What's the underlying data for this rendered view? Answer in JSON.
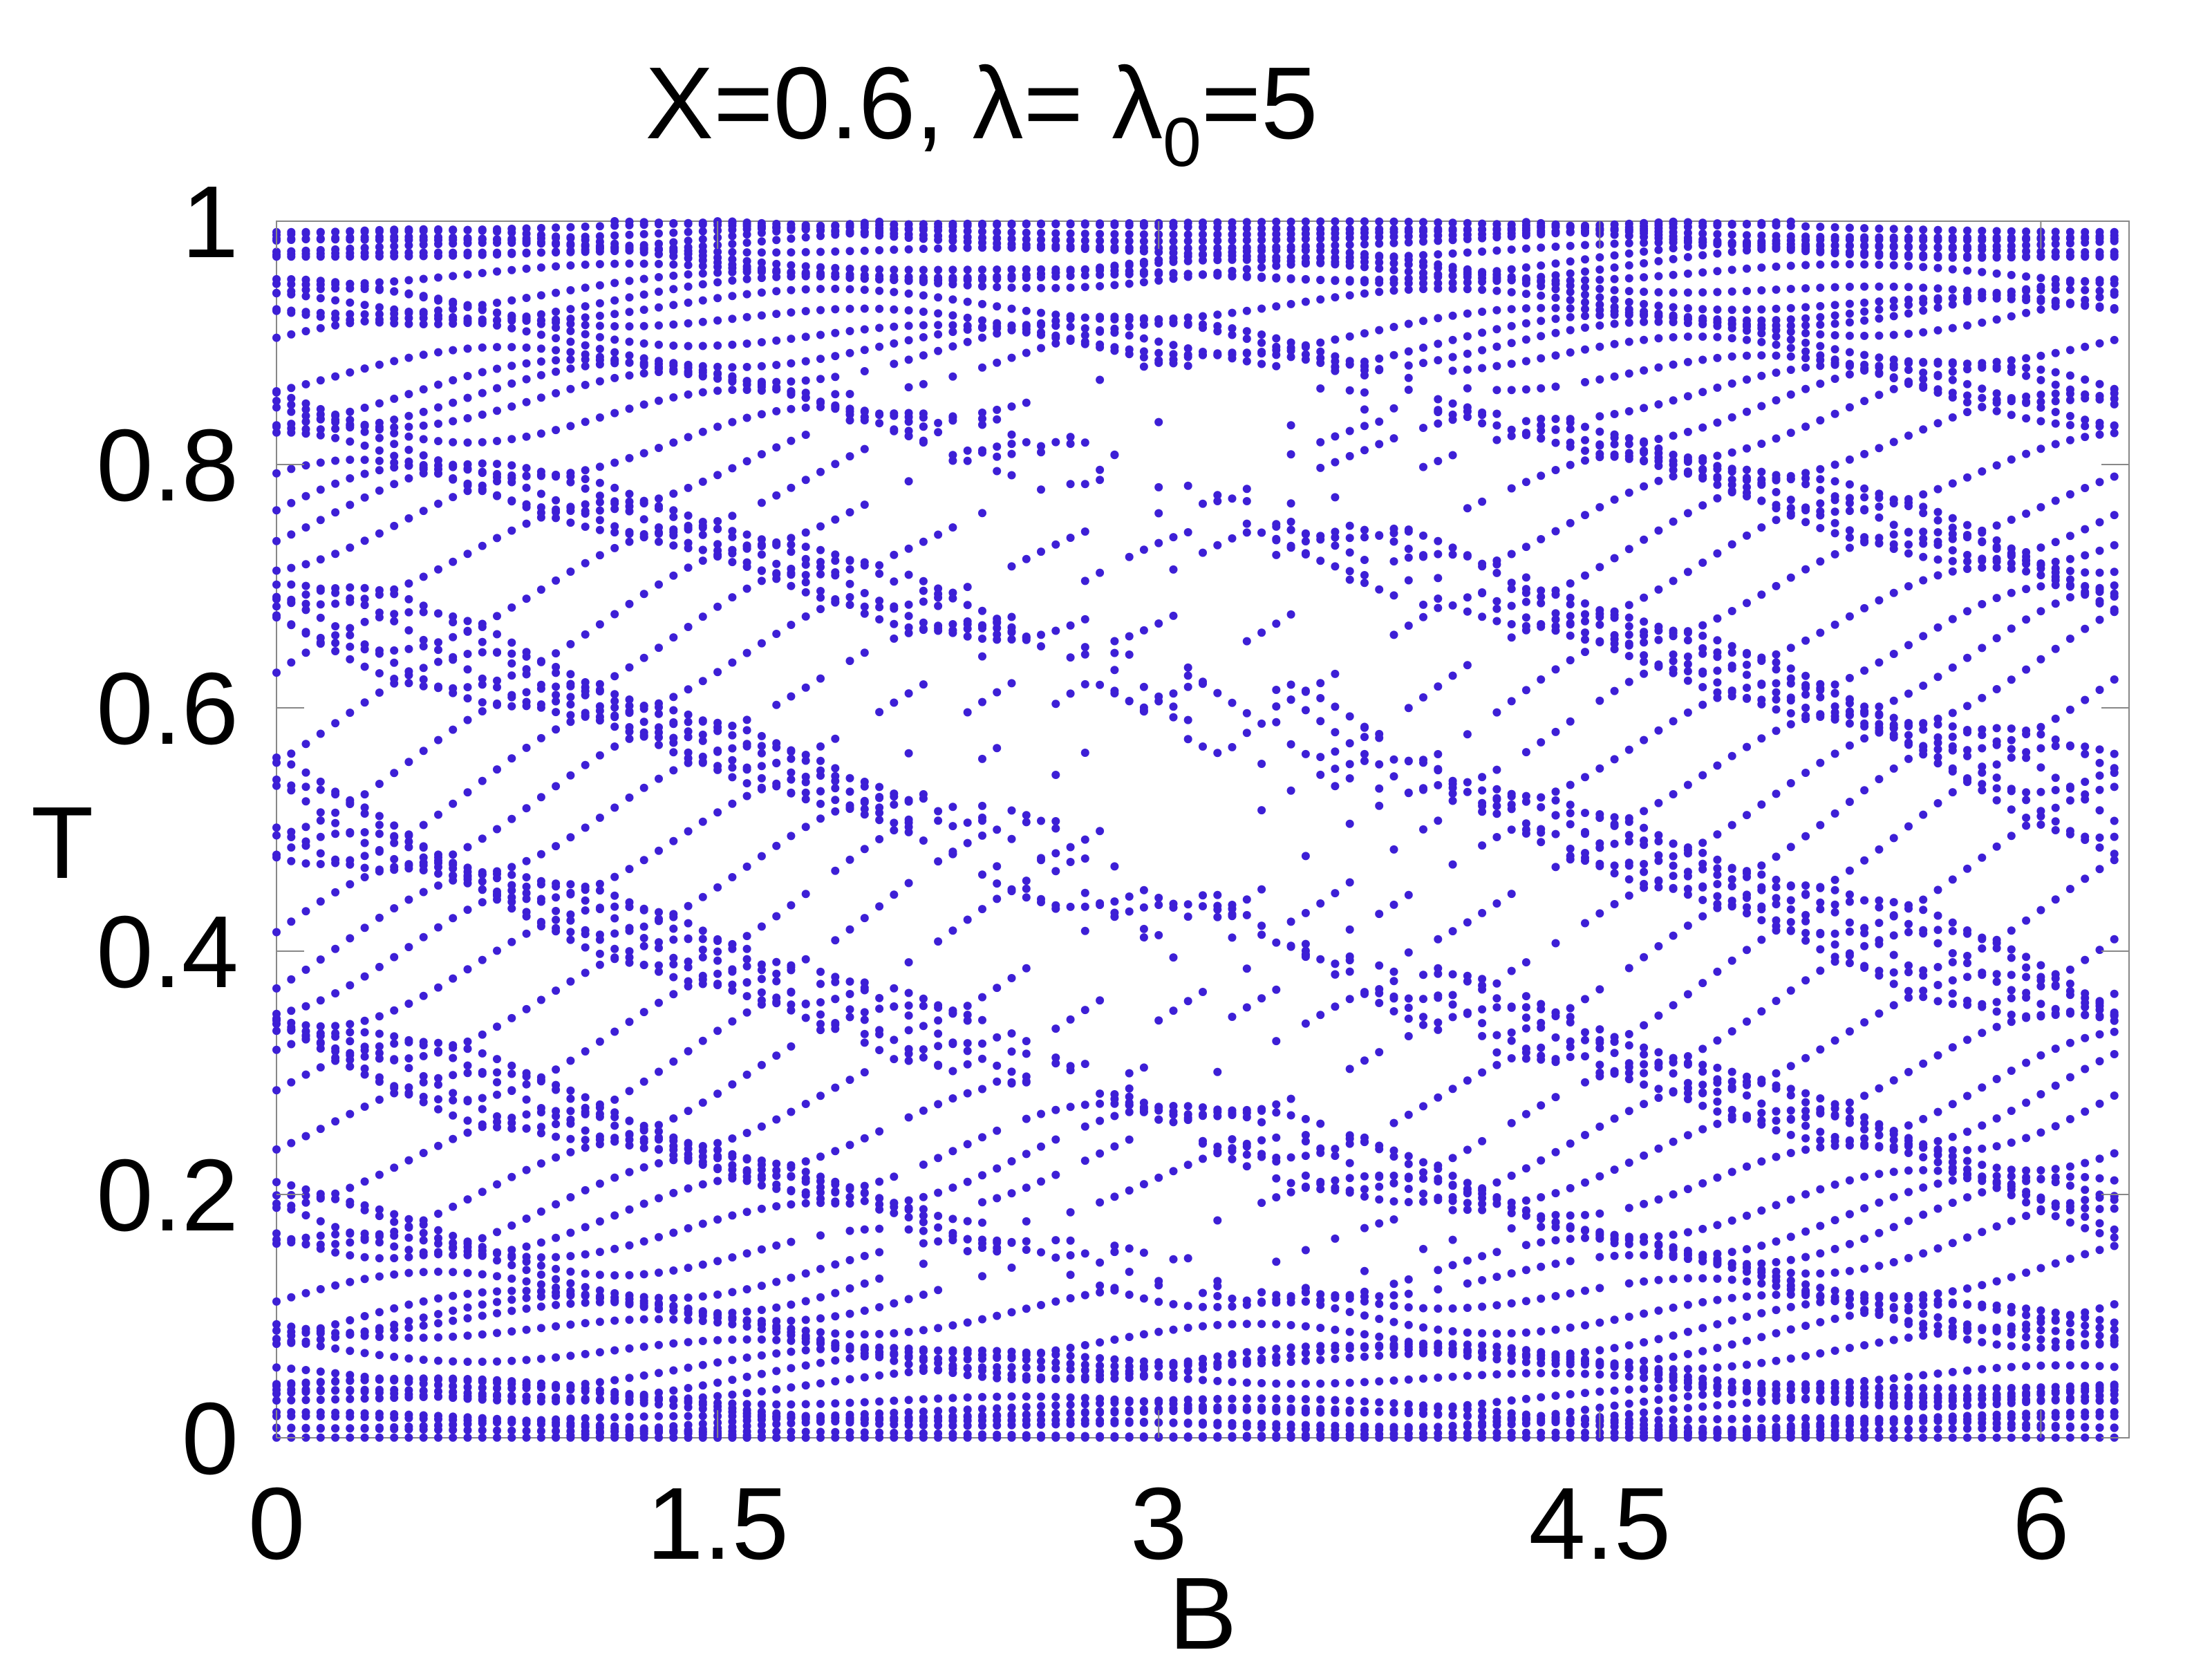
{
  "chart_data": {
    "type": "scatter",
    "title": "X=0.6, λ= λ",
    "title_subscript": "0",
    "title_suffix": "=5",
    "xlabel": "B",
    "ylabel": "T",
    "xlim": [
      0,
      6.3
    ],
    "ylim": [
      0,
      1
    ],
    "xticks": [
      0,
      1.5,
      3,
      4.5,
      6
    ],
    "xtick_labels": [
      "0",
      "1.5",
      "3",
      "4.5",
      "6"
    ],
    "yticks": [
      0,
      0.2,
      0.4,
      0.6,
      0.8,
      1
    ],
    "ytick_labels": [
      "0",
      "0.2",
      "0.4",
      "0.6",
      "0.8",
      "1"
    ],
    "grid": false,
    "legend": "none",
    "marker_color": "#3d1fd6",
    "series": [
      {
        "columns": 126,
        "x_step": 0.05,
        "points_per_column": 80,
        "description_of_values": "transmission eigenvalues T at each B on a uniform grid 0..6.3"
      }
    ]
  }
}
